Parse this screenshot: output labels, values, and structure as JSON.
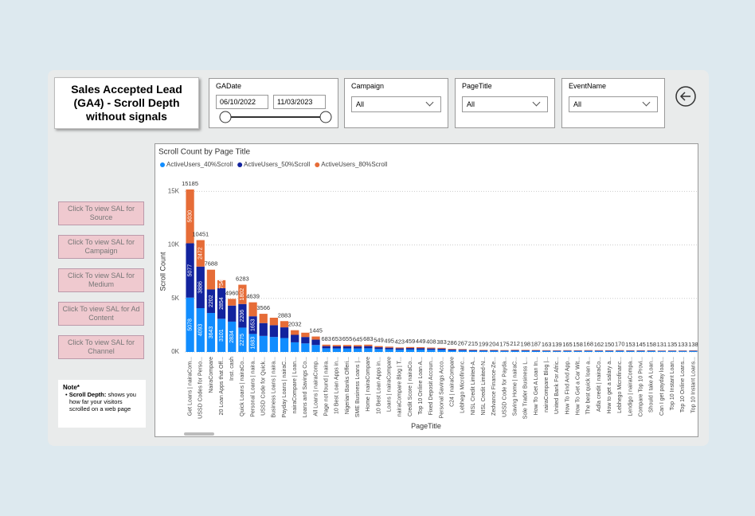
{
  "report": {
    "title": "Sales Accepted Lead (GA4) - Scroll Depth without signals"
  },
  "slicers": [
    {
      "label": "GADate",
      "from": "06/10/2022",
      "to": "11/03/2023"
    },
    {
      "label": "Campaign",
      "value": "All"
    },
    {
      "label": "PageTitle",
      "value": "All"
    },
    {
      "label": "EventName",
      "value": "All"
    }
  ],
  "buttons": [
    "Click To view SAL for Source",
    "Click To view SAL for Campaign",
    "Click To view SAL for Medium",
    "Click To view SAL for Ad Content",
    "Click To view SAL for Channel"
  ],
  "note": {
    "title": "Note*",
    "term": "Scroll Depth:",
    "text": "shows you how far your visitors scrolled on a web page"
  },
  "chart_data": {
    "type": "stacked_bar",
    "title": "Scroll Count by Page Title",
    "x_label": "PageTitle",
    "y_label": "Scroll Count",
    "categories": [
      "Get Loans | nairaCom...",
      "USSD Codes for Perso...",
      "NairaCompare",
      "20 Loan Apps that Off...",
      "Inst. cash",
      "Quick Loans | nairaCo...",
      "Personal Loans | naira...",
      "USSD Code for Quick...",
      "Business Loans | naira...",
      "Payday Loans | nairaC...",
      "nairaCompare | Loan...",
      "Loans and Savings Co...",
      "All Loans | nairaComp...",
      "Page not found | naira...",
      "10 Best Loan Apps in...",
      "Nigerian Banks Offeri...",
      "SME Business Loans |...",
      "Home | nairaCompare",
      "10 Best Loan Apps in...",
      "Loans | nairaCompare",
      "nairaCompare Blog | T...",
      "Credit Score | nairaCo...",
      "Top 10 Online Loan A...",
      "Fixed Deposit Accoun...",
      "Personal Savings Acco...",
      "C24 | nairaCompare",
      "Lebhego Microfinanc...",
      "NISL Credit Limited-A...",
      "NISL Credit Limited-N...",
      "Zedvance Finance-Ze...",
      "USSD Code for Payda...",
      "Saving Home | nairaC...",
      "Sole Trader Business L...",
      "How To Get A Loan In...",
      "nairaCompare Blog |...",
      "United Bank For Afric...",
      "How To Find And App...",
      "How To Get a Car Wit...",
      "The best quick loan a...",
      "Adla credit | nairaCo...",
      "How to get a salary a...",
      "Lebhego Microfinanc...",
      "Lendigo | nairaCompa...",
      "Compare Top 10 Provi...",
      "Should I take A Loan...",
      "Can I get payday loan...",
      "Top 10 Instant Loan...",
      "Top 10 Online Loans...",
      "Top 10 Instant Loans..."
    ],
    "series": [
      {
        "name": "ActiveUsers_40%Scroll",
        "color": "#118dff",
        "values": [
          5078,
          4093,
          3643,
          3101,
          2834,
          2275,
          1683,
          1500,
          1400,
          1300,
          900,
          800,
          650,
          342,
          327,
          328,
          323,
          342,
          275,
          248,
          212,
          230,
          225,
          204,
          192,
          143,
          134,
          108,
          100,
          102,
          88,
          106,
          99,
          94,
          82,
          70,
          83,
          79,
          84,
          81,
          75,
          85,
          77,
          73,
          79,
          66,
          68,
          67,
          69
        ],
        "value_labels": [
          "5078",
          "4093",
          "3643",
          "3101",
          "2834",
          "2275",
          "1683",
          null,
          null,
          null,
          null,
          null,
          null,
          null,
          null,
          null,
          null,
          null,
          null,
          null,
          null,
          null,
          null,
          null,
          null,
          null,
          null,
          null,
          null,
          null,
          null,
          null,
          null,
          null,
          null,
          null,
          null,
          null,
          null,
          null,
          null,
          null,
          null,
          null,
          null,
          null,
          null,
          null,
          null
        ]
      },
      {
        "name": "ActiveUsers_50%Scroll",
        "color": "#12239e",
        "values": [
          5077,
          3886,
          2202,
          2854,
          1500,
          2206,
          1653,
          1200,
          1100,
          1000,
          700,
          600,
          500,
          205,
          196,
          197,
          194,
          205,
          165,
          149,
          127,
          138,
          135,
          122,
          115,
          86,
          80,
          65,
          60,
          61,
          53,
          64,
          59,
          56,
          49,
          42,
          50,
          47,
          50,
          49,
          45,
          51,
          46,
          44,
          47,
          39,
          41,
          40,
          41
        ],
        "value_labels": [
          "5077",
          "3886",
          "2202",
          "2854",
          null,
          "2206",
          "1653",
          null,
          null,
          null,
          null,
          null,
          null,
          null,
          null,
          null,
          null,
          null,
          null,
          null,
          null,
          null,
          null,
          null,
          null,
          null,
          null,
          null,
          null,
          null,
          null,
          null,
          null,
          null,
          null,
          null,
          null,
          null,
          null,
          null,
          null,
          null,
          null,
          null,
          null,
          null,
          null,
          null,
          null
        ]
      },
      {
        "name": "ActiveUsers_80%Scroll",
        "color": "#e66c37",
        "values": [
          5030,
          2472,
          1843,
          754,
          626,
          1802,
          1303,
          866,
          700,
          583,
          432,
          400,
          295,
          136,
          130,
          130,
          128,
          136,
          109,
          98,
          84,
          91,
          89,
          82,
          76,
          57,
          53,
          42,
          39,
          41,
          34,
          42,
          40,
          37,
          32,
          27,
          32,
          32,
          34,
          32,
          30,
          34,
          30,
          28,
          32,
          26,
          26,
          26,
          28
        ],
        "value_labels": [
          "5030",
          "2472",
          null,
          "754",
          null,
          "1802",
          null,
          null,
          null,
          null,
          null,
          null,
          null,
          null,
          null,
          null,
          null,
          null,
          null,
          null,
          null,
          null,
          null,
          null,
          null,
          null,
          null,
          null,
          null,
          null,
          null,
          null,
          null,
          null,
          null,
          null,
          null,
          null,
          null,
          null,
          null,
          null,
          null,
          null,
          null,
          null,
          null,
          null,
          null
        ]
      }
    ],
    "total_labels": [
      15185,
      10451,
      7688,
      null,
      4960,
      6283,
      4639,
      3566,
      null,
      2883,
      2032,
      null,
      1445,
      683,
      653,
      655,
      645,
      683,
      549,
      495,
      423,
      459,
      449,
      408,
      383,
      286,
      267,
      215,
      199,
      204,
      175,
      212,
      198,
      187,
      163,
      139,
      165,
      158,
      168,
      162,
      150,
      170,
      153,
      145,
      158,
      131,
      135,
      133,
      138
    ],
    "ylim": [
      0,
      15700
    ],
    "yticks": [
      {
        "value": 0,
        "label": "0K"
      },
      {
        "value": 5000,
        "label": "5K"
      },
      {
        "value": 10000,
        "label": "10K"
      },
      {
        "value": 15000,
        "label": "15K"
      }
    ],
    "grid": true,
    "legend": "top-left"
  }
}
